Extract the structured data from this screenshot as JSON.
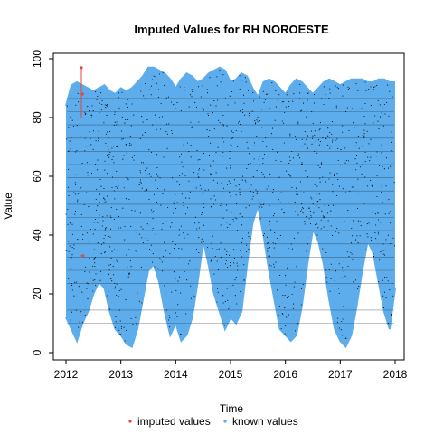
{
  "chart_data": {
    "type": "line",
    "title": "Imputed Values for  RH NOROESTE",
    "xlabel": "Time",
    "ylabel": "Value",
    "xlim": [
      2012,
      2018
    ],
    "ylim": [
      0,
      100
    ],
    "x_ticks": [
      2012,
      2013,
      2014,
      2015,
      2016,
      2017,
      2018
    ],
    "y_ticks": [
      0,
      20,
      40,
      60,
      80,
      100
    ],
    "x_tick_labels": [
      "2012",
      "2013",
      "2014",
      "2015",
      "2016",
      "2017",
      "2018"
    ],
    "y_tick_labels": [
      "0",
      "20",
      "40",
      "60",
      "80",
      "100"
    ],
    "grid": false,
    "legend_position": "bottom",
    "series": [
      {
        "name": "known values",
        "color": "#5DADEC",
        "point_color": "#000000",
        "x": [
          2012.0,
          2012.1,
          2012.2,
          2012.3,
          2012.4,
          2012.5,
          2012.6,
          2012.7,
          2012.8,
          2012.9,
          2013.0,
          2013.1,
          2013.2,
          2013.3,
          2013.4,
          2013.5,
          2013.6,
          2013.7,
          2013.8,
          2013.9,
          2014.0,
          2014.1,
          2014.2,
          2014.3,
          2014.4,
          2014.5,
          2014.6,
          2014.7,
          2014.8,
          2014.9,
          2015.0,
          2015.1,
          2015.2,
          2015.3,
          2015.4,
          2015.5,
          2015.6,
          2015.7,
          2015.8,
          2015.9,
          2016.0,
          2016.1,
          2016.2,
          2016.3,
          2016.4,
          2016.5,
          2016.6,
          2016.7,
          2016.8,
          2016.9,
          2017.0,
          2017.1,
          2017.2,
          2017.3,
          2017.4,
          2017.5,
          2017.6,
          2017.7,
          2017.8,
          2017.9,
          2018.0
        ],
        "upper": [
          84,
          91,
          92,
          91,
          90,
          89,
          90,
          91,
          89,
          88,
          90,
          89,
          90,
          92,
          94,
          97,
          97,
          96,
          95,
          93,
          90,
          93,
          95,
          94,
          92,
          93,
          95,
          96,
          97,
          96,
          92,
          93,
          95,
          94,
          90,
          87,
          92,
          93,
          92,
          90,
          88,
          91,
          93,
          92,
          90,
          88,
          90,
          92,
          93,
          92,
          91,
          92,
          93,
          93,
          93,
          92,
          92,
          93,
          93,
          92,
          92
        ],
        "lower": [
          12,
          8,
          4,
          10,
          14,
          20,
          24,
          22,
          14,
          8,
          6,
          3,
          2,
          8,
          18,
          28,
          30,
          24,
          14,
          6,
          10,
          4,
          6,
          12,
          24,
          38,
          30,
          20,
          14,
          8,
          12,
          10,
          14,
          30,
          44,
          50,
          40,
          28,
          18,
          8,
          6,
          4,
          6,
          16,
          30,
          42,
          38,
          30,
          18,
          8,
          4,
          2,
          6,
          16,
          28,
          38,
          34,
          24,
          14,
          8,
          22
        ]
      },
      {
        "name": "imputed values",
        "color": "#E8453C",
        "x": [
          2012.28,
          2012.31,
          2012.3
        ],
        "y": [
          97,
          33,
          88
        ]
      }
    ],
    "legend": [
      {
        "label": "imputed values",
        "color": "#E8453C"
      },
      {
        "label": "known values",
        "color": "#5DADEC"
      }
    ]
  }
}
